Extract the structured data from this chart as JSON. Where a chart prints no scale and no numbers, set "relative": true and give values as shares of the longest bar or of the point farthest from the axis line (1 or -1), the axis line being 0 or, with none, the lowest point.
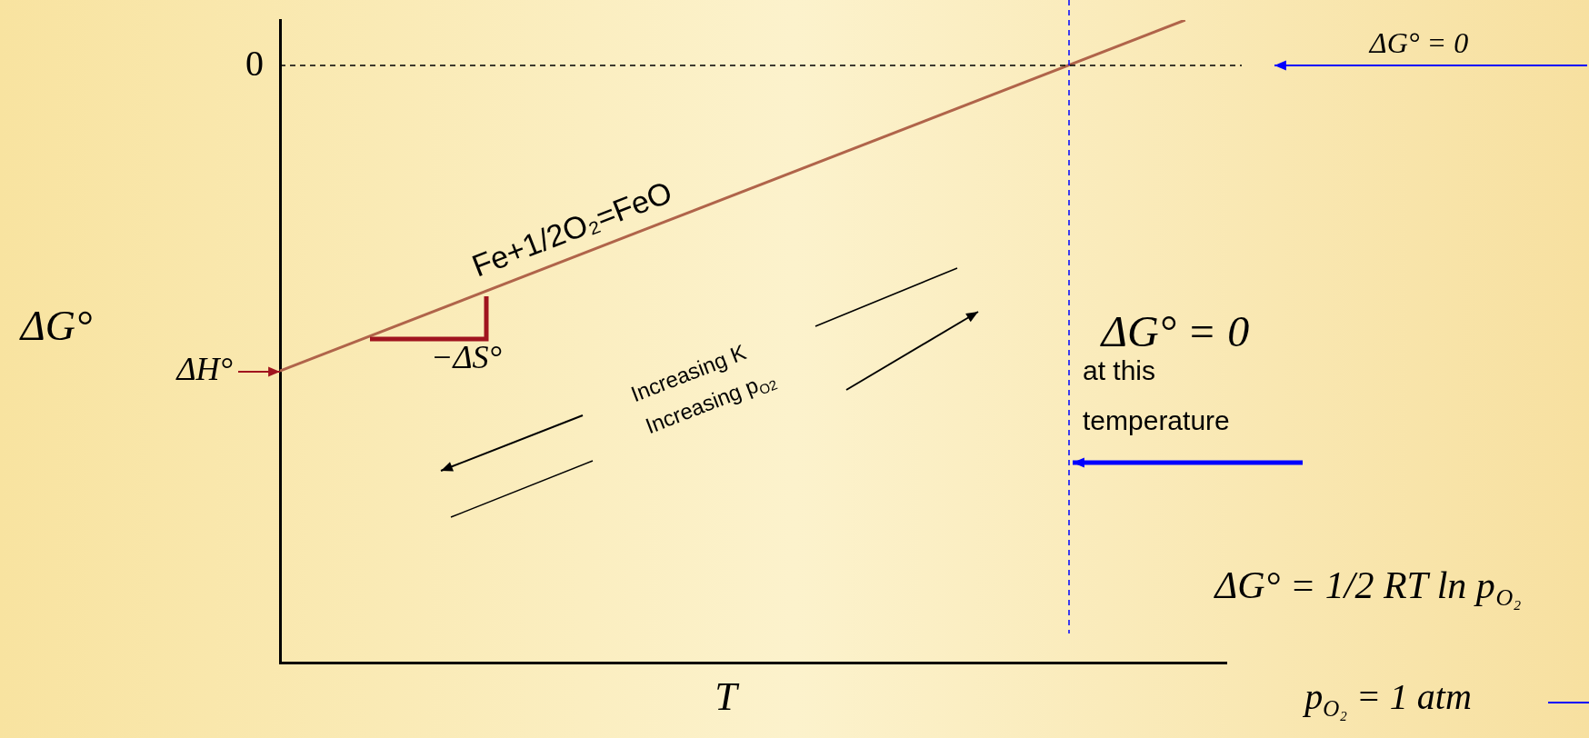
{
  "chart_data": {
    "type": "line",
    "relative": true,
    "xlabel": "T",
    "ylabel": "ΔG°",
    "grid": false,
    "legend": false,
    "marker": "none",
    "categories": [
      null,
      null,
      null,
      null,
      null,
      null,
      null,
      null,
      null,
      null,
      null,
      null,
      null,
      null,
      null,
      null,
      null,
      null,
      null,
      null,
      null,
      null,
      null,
      null
    ],
    "ylim": [
      -1.955,
      0.149
    ],
    "series": [
      {
        "color": "#b0644a",
        "values": [
          -1,
          null,
          null,
          null,
          null,
          null,
          null,
          null,
          null,
          null,
          null,
          null,
          null,
          null,
          null,
          null,
          null,
          null,
          null,
          null,
          null,
          null,
          0.149,
          null
        ]
      }
    ],
    "ref_lines": [
      {
        "axis": "y",
        "value": 0,
        "label": "0",
        "color": "#000000",
        "line_style": "dashed"
      }
    ],
    "annotations": [
      "Fe+1/2O₂=FeO",
      "ΔH°",
      "−ΔS°",
      "Increasing K",
      "Increasing p$_{O2}$",
      "ΔG° = 0",
      "ΔG° = 0",
      "at this",
      "temperature",
      "ΔG° = 1/2 RT ln p$_{O₂}$",
      "p$_{O₂}$ = 1 atm"
    ]
  }
}
